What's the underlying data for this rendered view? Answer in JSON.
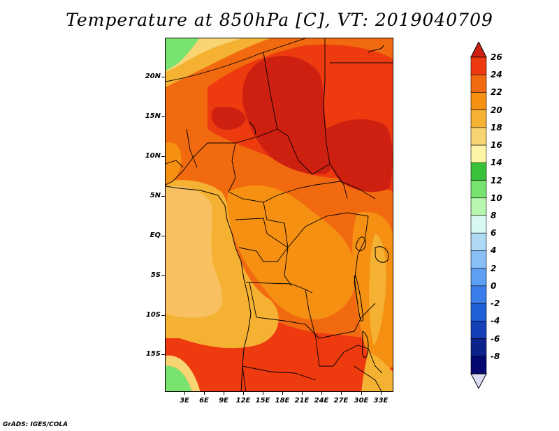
{
  "title": "Temperature at 850hPa [C], VT: 2019040709",
  "footer": "GrADS: IGES/COLA",
  "map": {
    "lat_range": [
      -20,
      24
    ],
    "lon_range": [
      0,
      35
    ],
    "lat_labels": [
      "20N",
      "15N",
      "10N",
      "5N",
      "EQ",
      "5S",
      "10S",
      "15S"
    ],
    "lat_values": [
      20,
      15,
      10,
      5,
      0,
      -5,
      -10,
      -15
    ],
    "lon_labels": [
      "3E",
      "6E",
      "9E",
      "12E",
      "15E",
      "18E",
      "21E",
      "24E",
      "27E",
      "30E",
      "33E"
    ],
    "lon_values": [
      3,
      6,
      9,
      12,
      15,
      18,
      21,
      24,
      27,
      30,
      33
    ]
  },
  "colorbar": {
    "labels": [
      "26",
      "24",
      "22",
      "20",
      "18",
      "16",
      "14",
      "12",
      "10",
      "8",
      "6",
      "4",
      "2",
      "0",
      "-2",
      "-4",
      "-6",
      "-8"
    ],
    "colors": [
      "#ce2010",
      "#ee3a0f",
      "#f26a10",
      "#f59012",
      "#f5b132",
      "#f8d473",
      "#fdf4a6",
      "#38c23a",
      "#78e36e",
      "#b7f6ae",
      "#d8f8f4",
      "#afdaf6",
      "#88c0f5",
      "#5c9ff3",
      "#3a7eec",
      "#1f5fd8",
      "#1540b8",
      "#0d218b",
      "#050870",
      "#dcdcf5"
    ]
  }
}
